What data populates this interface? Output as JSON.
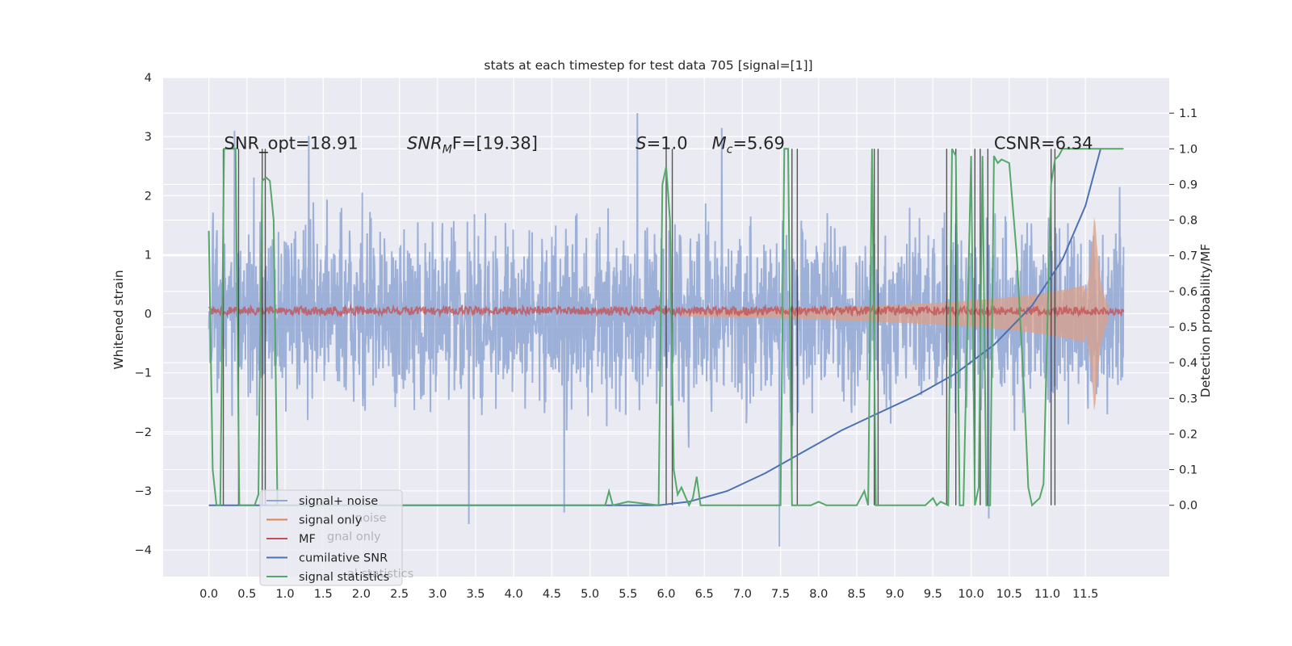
{
  "chart_data": {
    "type": "line",
    "title": "stats at each timestep for test data 705 [signal=[1]]",
    "xlabel": "",
    "ylabel": "Whitened strain",
    "ylabel_right": "Detection probability/MF",
    "xlim": [
      -0.6,
      12.6
    ],
    "ylim": [
      -4.45,
      4.0
    ],
    "ylim_right": [
      -0.2,
      1.2
    ],
    "x_ticks": [
      "0.0",
      "0.5",
      "1.0",
      "1.5",
      "2.0",
      "2.5",
      "3.0",
      "3.5",
      "4.0",
      "4.5",
      "5.0",
      "5.5",
      "6.0",
      "6.5",
      "7.0",
      "7.5",
      "8.0",
      "8.5",
      "9.0",
      "9.5",
      "10.0",
      "10.5",
      "11.0",
      "11.5"
    ],
    "y_ticks": [
      "4",
      "3",
      "2",
      "1",
      "0",
      "−1",
      "−2",
      "−3",
      "−4"
    ],
    "y_right_ticks": [
      "1.1",
      "1.0",
      "0.9",
      "0.8",
      "0.7",
      "0.6",
      "0.5",
      "0.4",
      "0.3",
      "0.2",
      "0.1",
      "0.0"
    ],
    "grid": true,
    "legend_position": "lower-left",
    "annotations": [
      {
        "text": "SNR_opt=18.91",
        "x": 0.2
      },
      {
        "text": "SNR",
        "sub": "M",
        "rest": "F=[19.38]",
        "x": 2.6
      },
      {
        "text": "S",
        "rest": "=1.0",
        "x": 5.6
      },
      {
        "text": "M",
        "sub": "c",
        "rest": "=5.69",
        "x": 6.6
      },
      {
        "text": "CSNR=6.34",
        "x": 10.3
      }
    ],
    "noise_envelope": {
      "x": [
        0,
        12
      ],
      "typical_max": 2.2,
      "typical_min": -2.0,
      "peak_max": 3.6,
      "peak_min": -4.1
    },
    "signal_chirp": {
      "x": [
        0,
        11.8
      ],
      "amp_start": 0.05,
      "amp_end": 0.35,
      "peak": 1.8,
      "end": 11.75
    },
    "mf_band": {
      "center": 0.05,
      "amp": 0.1
    },
    "cumulative_snr": {
      "x": [
        0,
        5.9,
        6.3,
        6.8,
        7.3,
        7.8,
        8.3,
        8.8,
        9.3,
        9.8,
        10.3,
        10.8,
        11.2,
        11.5,
        11.7
      ],
      "y": [
        0.0,
        0.0,
        0.01,
        0.04,
        0.09,
        0.15,
        0.21,
        0.26,
        0.31,
        0.37,
        0.45,
        0.56,
        0.69,
        0.84,
        1.0
      ]
    },
    "signal_statistics": {
      "x": [
        0.0,
        0.05,
        0.1,
        0.15,
        0.2,
        0.25,
        0.3,
        0.35,
        0.4,
        0.45,
        0.5,
        0.55,
        0.6,
        0.65,
        0.7,
        0.75,
        0.8,
        0.85,
        0.9,
        0.95,
        1.0,
        5.2,
        5.25,
        5.3,
        5.5,
        5.9,
        5.95,
        6.0,
        6.05,
        6.1,
        6.15,
        6.2,
        6.3,
        6.35,
        6.4,
        6.45,
        6.5,
        6.6,
        7.5,
        7.55,
        7.6,
        7.65,
        7.7,
        7.9,
        8.0,
        8.1,
        8.5,
        8.6,
        8.65,
        8.7,
        8.75,
        8.8,
        9.4,
        9.5,
        9.55,
        9.6,
        9.7,
        9.75,
        9.8,
        9.85,
        9.9,
        10.0,
        10.05,
        10.1,
        10.15,
        10.2,
        10.25,
        10.3,
        10.35,
        10.4,
        10.5,
        10.6,
        10.7,
        10.75,
        10.8,
        10.9,
        10.95,
        11.0,
        11.05,
        11.1,
        11.15,
        11.2,
        11.3,
        11.4,
        11.5,
        11.6,
        12.0
      ],
      "y": [
        0.77,
        0.1,
        0.0,
        0.0,
        1.0,
        1.0,
        1.0,
        1.0,
        0.0,
        0.0,
        0.0,
        0.0,
        0.0,
        0.03,
        0.91,
        0.92,
        0.91,
        0.8,
        0.0,
        0.0,
        0.0,
        0.0,
        0.04,
        0.0,
        0.01,
        0.0,
        0.9,
        0.95,
        0.8,
        0.1,
        0.03,
        0.05,
        0.0,
        0.02,
        0.08,
        0.0,
        0.0,
        0.0,
        0.0,
        1.0,
        1.0,
        0.0,
        0.0,
        0.0,
        0.01,
        0.0,
        0.0,
        0.04,
        0.0,
        1.0,
        0.0,
        0.0,
        0.0,
        0.02,
        0.0,
        0.01,
        0.0,
        1.0,
        0.98,
        0.0,
        0.0,
        0.98,
        0.0,
        0.05,
        0.98,
        0.0,
        0.0,
        0.98,
        0.96,
        0.97,
        0.96,
        0.7,
        0.3,
        0.05,
        0.0,
        0.02,
        0.06,
        0.5,
        0.9,
        0.97,
        0.98,
        1.0,
        1.0,
        1.0,
        1.0,
        1.0,
        1.0
      ]
    },
    "vlines": [
      0.19,
      0.39,
      0.7,
      0.74,
      6.0,
      6.08,
      7.65,
      7.72,
      8.73,
      8.78,
      9.68,
      9.8,
      10.05,
      10.12,
      10.22,
      11.05,
      11.1
    ],
    "series": [
      {
        "name": "signal+ noise",
        "color": "#8fa6d4"
      },
      {
        "name": "signal only",
        "color": "#dd8452"
      },
      {
        "name": "MF",
        "color": "#c44e52"
      },
      {
        "name": "cumilative SNR",
        "color": "#4c72b0"
      },
      {
        "name": "signal statistics",
        "color": "#55a868"
      }
    ],
    "legend_ghost": [
      "noise",
      "gnal only",
      "al statistics"
    ]
  },
  "colors": {
    "plot_bg": "#eaeaf2",
    "grid": "#ffffff",
    "vline": "#3a3a3a"
  }
}
